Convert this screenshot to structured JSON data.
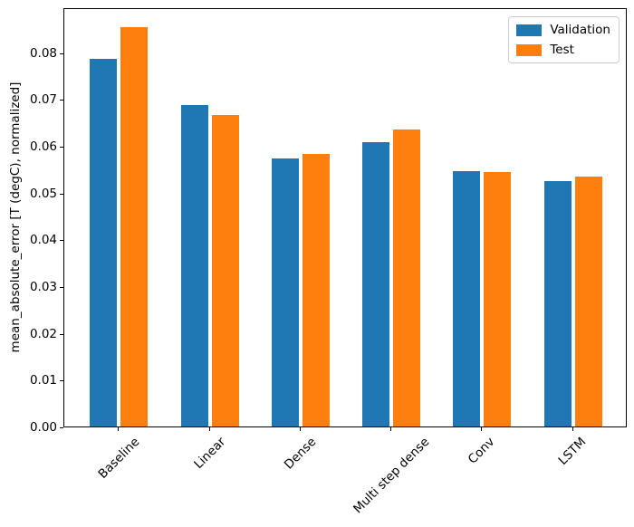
{
  "figure": {
    "background": "#ffffff",
    "axis_color": "#000000"
  },
  "chart_data": {
    "type": "bar",
    "title": "",
    "xlabel": "",
    "ylabel": "mean_absolute_error [T (degC), normalized]",
    "categories": [
      "Baseline",
      "Linear",
      "Dense",
      "Multi step dense",
      "Conv",
      "LSTM"
    ],
    "series": [
      {
        "name": "Validation",
        "color": "#1f77b4",
        "values": [
          0.0785,
          0.0687,
          0.0573,
          0.0607,
          0.0545,
          0.0524
        ]
      },
      {
        "name": "Test",
        "color": "#ff7f0e",
        "values": [
          0.0853,
          0.0665,
          0.0583,
          0.0634,
          0.0543,
          0.0534
        ]
      }
    ],
    "ylim": [
      0,
      0.0896
    ],
    "yticks": [
      0.0,
      0.01,
      0.02,
      0.03,
      0.04,
      0.05,
      0.06,
      0.07,
      0.08
    ],
    "ytick_labels": [
      "0.00",
      "0.01",
      "0.02",
      "0.03",
      "0.04",
      "0.05",
      "0.06",
      "0.07",
      "0.08"
    ],
    "xlim": [
      -0.602,
      5.602
    ],
    "bar_width": 0.3,
    "bar_offset": 0.17,
    "xtick_rotation": 45,
    "grid": false,
    "legend": {
      "position": "upper right",
      "entries": [
        "Validation",
        "Test"
      ]
    }
  }
}
